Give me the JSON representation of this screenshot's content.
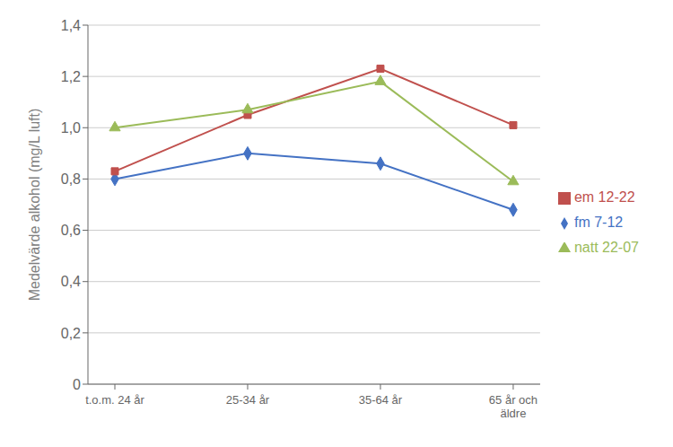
{
  "chart_data": {
    "type": "line",
    "categories": [
      "t.o.m. 24 år",
      "25-34 år",
      "35-64 år",
      "65 år och\näldre"
    ],
    "series": [
      {
        "name": "fm 7-12",
        "color": "#4472C4",
        "marker": "diamond",
        "values": [
          0.8,
          0.9,
          0.86,
          0.68
        ]
      },
      {
        "name": "em 12-22",
        "color": "#C0504D",
        "marker": "square",
        "values": [
          0.83,
          1.05,
          1.23,
          1.01
        ]
      },
      {
        "name": "natt 22-07",
        "color": "#9BBB59",
        "marker": "triangle",
        "values": [
          1.0,
          1.07,
          1.18,
          0.79
        ]
      }
    ],
    "ylabel": "Medelvärde alkohol (mg/L luft)",
    "ylim": [
      0,
      1.4
    ],
    "yticks": [
      0,
      {
        "value": 0.2,
        "label": "0,2"
      },
      {
        "value": 0.4,
        "label": "0,4"
      },
      {
        "value": 0.6,
        "label": "0,6"
      },
      {
        "value": 0.8,
        "label": "0,8"
      },
      {
        "value": 1.0,
        "label": "1,0"
      },
      {
        "value": 1.2,
        "label": "1,2"
      },
      {
        "value": 1.4,
        "label": "1,4"
      }
    ],
    "grid": true,
    "legend": "right"
  }
}
